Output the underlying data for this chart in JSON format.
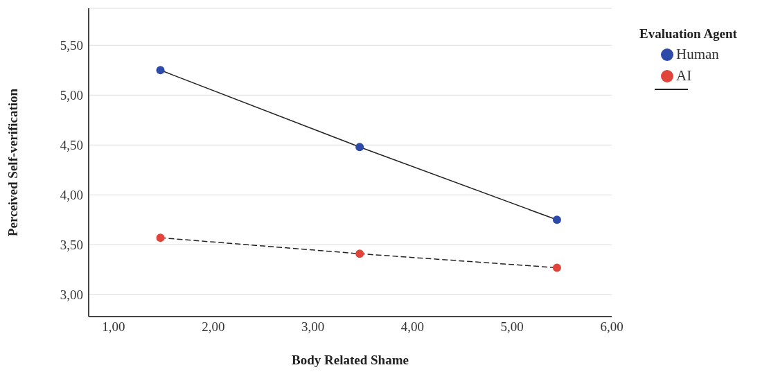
{
  "chart_data": {
    "type": "line",
    "xlabel": "Body Related Shame",
    "ylabel": "Perceived Self-verification",
    "legend_title": "Evaluation Agent",
    "x": [
      1.47,
      3.47,
      5.45
    ],
    "series": [
      {
        "name": "Human",
        "color": "#2e4aa8",
        "values": [
          5.25,
          4.48,
          3.75
        ],
        "line_style": "solid"
      },
      {
        "name": "AI",
        "color": "#e0443a",
        "values": [
          3.57,
          3.41,
          3.27
        ],
        "line_style": "dashed"
      }
    ],
    "xlim": [
      0.75,
      6
    ],
    "xticks": [
      {
        "value": 1,
        "label": "1,00"
      },
      {
        "value": 2,
        "label": "2,00"
      },
      {
        "value": 3,
        "label": "3,00"
      },
      {
        "value": 4,
        "label": "4,00"
      },
      {
        "value": 5,
        "label": "5,00"
      },
      {
        "value": 6,
        "label": "6,00"
      }
    ],
    "ylim": [
      2.78,
      5.87
    ],
    "yticks": [
      {
        "value": 3,
        "label": "3,00"
      },
      {
        "value": 3.5,
        "label": "3,50"
      },
      {
        "value": 4,
        "label": "4,00"
      },
      {
        "value": 4.5,
        "label": "4,50"
      },
      {
        "value": 5,
        "label": "5,00"
      },
      {
        "value": 5.5,
        "label": "5,50"
      }
    ],
    "grid": "y",
    "legend": "top right",
    "marker": "circle"
  }
}
